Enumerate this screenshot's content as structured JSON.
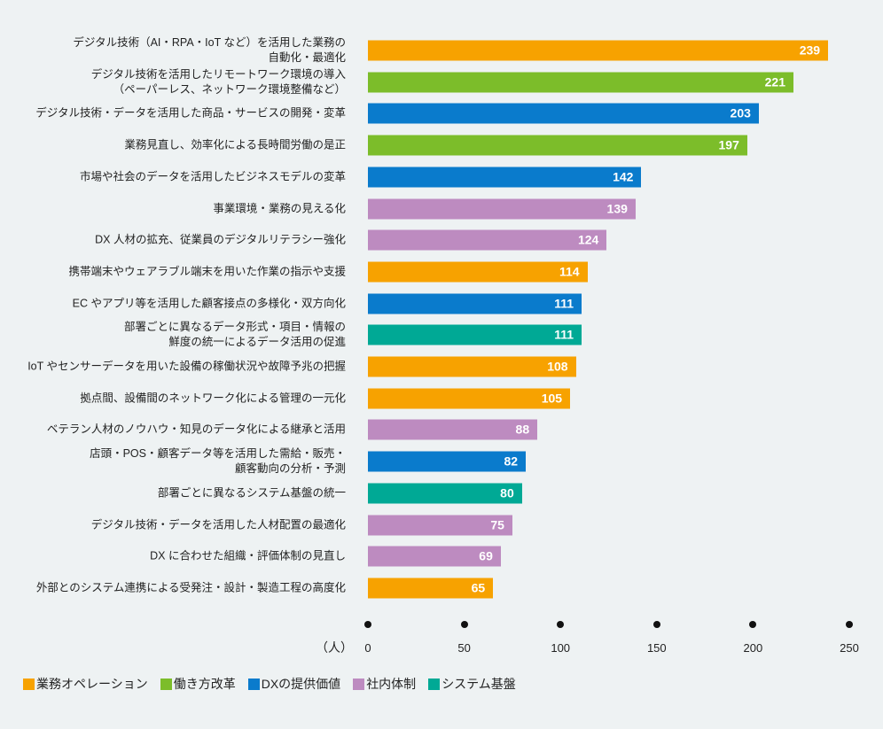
{
  "chart_data": {
    "type": "bar",
    "orientation": "horizontal",
    "xlabel": "（人）",
    "xlim": [
      0,
      250
    ],
    "xticks": [
      0,
      50,
      100,
      150,
      200,
      250
    ],
    "grid": false,
    "legend_position": "bottom-left",
    "categories": [
      "デジタル技術（AI・RPA・IoT など）を活用した業務の\n自動化・最適化",
      "デジタル技術を活用したリモートワーク環境の導入\n（ペーパーレス、ネットワーク環境整備など）",
      "デジタル技術・データを活用した商品・サービスの開発・変革",
      "業務見直し、効率化による長時間労働の是正",
      "市場や社会のデータを活用したビジネスモデルの変革",
      "事業環境・業務の見える化",
      "DX 人材の拡充、従業員のデジタルリテラシー強化",
      "携帯端末やウェアラブル端末を用いた作業の指示や支援",
      "EC やアプリ等を活用した顧客接点の多様化・双方向化",
      "部署ごとに異なるデータ形式・項目・情報の\n鮮度の統一によるデータ活用の促進",
      "IoT やセンサーデータを用いた設備の稼働状況や故障予兆の把握",
      "拠点間、設備間のネットワーク化による管理の一元化",
      "ベテラン人材のノウハウ・知見のデータ化による継承と活用",
      "店頭・POS・顧客データ等を活用した需給・販売・\n顧客動向の分析・予測",
      "部署ごとに異なるシステム基盤の統一",
      "デジタル技術・データを活用した人材配置の最適化",
      "DX に合わせた組織・評価体制の見直し",
      "外部とのシステム連携による受発注・設計・製造工程の高度化"
    ],
    "values": [
      239,
      221,
      203,
      197,
      142,
      139,
      124,
      114,
      111,
      111,
      108,
      105,
      88,
      82,
      80,
      75,
      69,
      65
    ],
    "groups": [
      0,
      1,
      2,
      1,
      2,
      3,
      3,
      0,
      2,
      4,
      0,
      0,
      3,
      2,
      4,
      3,
      3,
      0
    ],
    "legend": [
      {
        "name": "業務オペレーション",
        "color": "#f7a200"
      },
      {
        "name": "働き方改革",
        "color": "#7cbd2a"
      },
      {
        "name": "DXの提供価値",
        "color": "#0a7bcc"
      },
      {
        "name": "社内体制",
        "color": "#bd8bc0"
      },
      {
        "name": "システム基盤",
        "color": "#00a995"
      }
    ]
  }
}
